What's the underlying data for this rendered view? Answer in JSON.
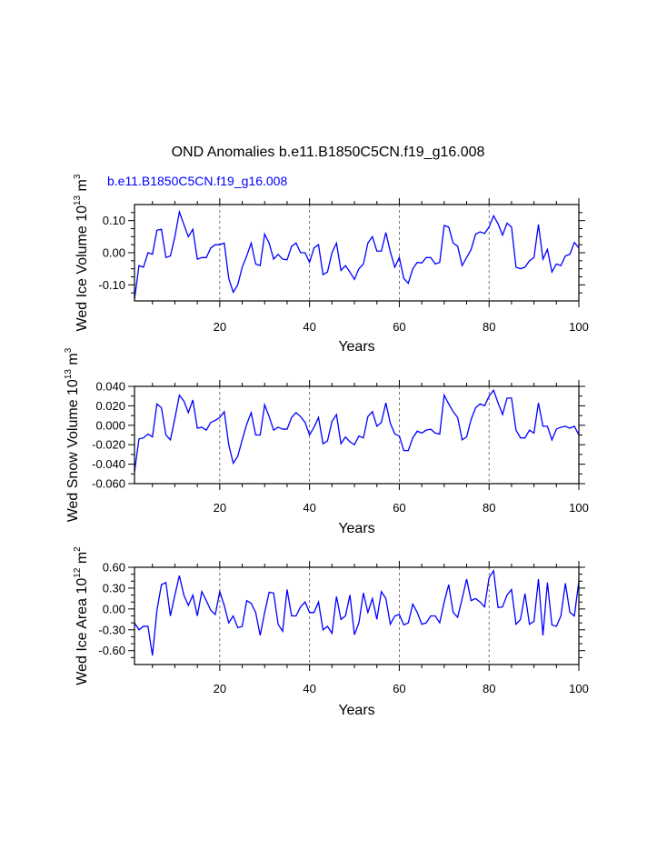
{
  "title": "OND Anomalies b.e11.B1850C5CN.f19_g16.008",
  "subtitle": "b.e11.B1850C5CN.f19_g16.008",
  "colors": {
    "series": "#0000ff",
    "axis": "#000000",
    "grid": "#555555",
    "subtitle": "#0000ff"
  },
  "chart_data": [
    {
      "type": "line",
      "xlabel": "Years",
      "ylabel": {
        "base": "Wed Ice Volume 10",
        "exp1": "13",
        "mid": " m",
        "exp2": "3"
      },
      "xlim": [
        1,
        100
      ],
      "ylim": [
        -0.15,
        0.15
      ],
      "xticks": [
        20,
        40,
        60,
        80,
        100
      ],
      "yticks": [
        -0.1,
        0.0,
        0.1
      ],
      "ytick_labels": [
        "-0.10",
        "0.00",
        "0.10"
      ],
      "yminor": [
        -0.125,
        -0.075,
        -0.05,
        -0.025,
        0.025,
        0.05,
        0.075,
        0.125
      ],
      "vlines": [
        20,
        40,
        60,
        80
      ],
      "series": [
        {
          "name": "Wed Ice Volume",
          "x_start": 1,
          "values": [
            -0.145,
            -0.04,
            -0.045,
            0.0,
            -0.005,
            0.07,
            0.073,
            -0.015,
            -0.01,
            0.05,
            0.127,
            0.088,
            0.05,
            0.073,
            -0.02,
            -0.015,
            -0.015,
            0.015,
            0.025,
            0.025,
            0.03,
            -0.08,
            -0.123,
            -0.1,
            -0.045,
            -0.01,
            0.03,
            -0.035,
            -0.04,
            0.058,
            0.03,
            -0.02,
            -0.005,
            -0.02,
            -0.022,
            0.02,
            0.03,
            0.0,
            0.0,
            -0.03,
            0.015,
            0.025,
            -0.068,
            -0.06,
            0.0,
            0.03,
            -0.055,
            -0.04,
            -0.06,
            -0.083,
            -0.05,
            -0.035,
            0.03,
            0.05,
            0.005,
            0.005,
            0.063,
            0.003,
            -0.045,
            -0.015,
            -0.08,
            -0.095,
            -0.05,
            -0.03,
            -0.032,
            -0.015,
            -0.015,
            -0.035,
            -0.03,
            0.085,
            0.08,
            0.03,
            0.02,
            -0.04,
            -0.015,
            0.01,
            0.058,
            0.065,
            0.06,
            0.08,
            0.115,
            0.09,
            0.055,
            0.092,
            0.08,
            -0.045,
            -0.05,
            -0.045,
            -0.025,
            -0.015,
            0.088,
            -0.02,
            0.01,
            -0.06,
            -0.035,
            -0.04,
            -0.01,
            -0.005,
            0.032,
            0.015
          ]
        }
      ]
    },
    {
      "type": "line",
      "xlabel": "Years",
      "ylabel": {
        "base": "Wed Snow Volume 10",
        "exp1": "13",
        "mid": " m",
        "exp2": "3"
      },
      "xlim": [
        1,
        100
      ],
      "ylim": [
        -0.06,
        0.04
      ],
      "xticks": [
        20,
        40,
        60,
        80,
        100
      ],
      "yticks": [
        -0.06,
        -0.04,
        -0.02,
        0.0,
        0.02,
        0.04
      ],
      "ytick_labels": [
        "-0.060",
        "-0.040",
        "-0.020",
        "0.000",
        "0.020",
        "0.040"
      ],
      "yminor": [
        -0.05,
        -0.03,
        -0.01,
        0.01,
        0.03
      ],
      "vlines": [
        20,
        40,
        60,
        80
      ],
      "series": [
        {
          "name": "Wed Snow Volume",
          "x_start": 1,
          "values": [
            -0.048,
            -0.014,
            -0.013,
            -0.009,
            -0.012,
            0.022,
            0.018,
            -0.01,
            -0.015,
            0.007,
            0.031,
            0.025,
            0.013,
            0.026,
            -0.003,
            -0.002,
            -0.005,
            0.003,
            0.005,
            0.008,
            0.014,
            -0.02,
            -0.039,
            -0.032,
            -0.015,
            0.001,
            0.013,
            -0.01,
            -0.01,
            0.021,
            0.009,
            -0.005,
            -0.002,
            -0.004,
            -0.004,
            0.008,
            0.013,
            0.009,
            0.003,
            -0.01,
            -0.002,
            0.008,
            -0.019,
            -0.016,
            0.004,
            0.011,
            -0.019,
            -0.012,
            -0.017,
            -0.02,
            -0.011,
            -0.013,
            0.009,
            0.014,
            -0.001,
            0.003,
            0.023,
            0.002,
            -0.009,
            -0.011,
            -0.026,
            -0.026,
            -0.013,
            -0.006,
            -0.008,
            -0.005,
            -0.004,
            -0.008,
            -0.009,
            0.031,
            0.022,
            0.014,
            0.008,
            -0.015,
            -0.012,
            0.006,
            0.018,
            0.022,
            0.02,
            0.03,
            0.036,
            0.023,
            0.011,
            0.028,
            0.028,
            -0.005,
            -0.013,
            -0.013,
            -0.005,
            -0.008,
            0.023,
            -0.001,
            -0.001,
            -0.015,
            -0.004,
            -0.002,
            -0.001,
            -0.003,
            -0.001,
            -0.01
          ]
        }
      ]
    },
    {
      "type": "line",
      "xlabel": "Years",
      "ylabel": {
        "base": "Wed Ice Area 10",
        "exp1": "12",
        "mid": " m",
        "exp2": "2"
      },
      "xlim": [
        1,
        100
      ],
      "ylim": [
        -0.8,
        0.6
      ],
      "xticks": [
        20,
        40,
        60,
        80,
        100
      ],
      "yticks": [
        -0.6,
        -0.3,
        0.0,
        0.3,
        0.6
      ],
      "ytick_labels": [
        "-0.60",
        "-0.30",
        "0.00",
        "0.30",
        "0.60"
      ],
      "yminor": [
        -0.7,
        -0.5,
        -0.4,
        -0.2,
        -0.1,
        0.1,
        0.2,
        0.4,
        0.5
      ],
      "vlines": [
        20,
        40,
        60,
        80
      ],
      "series": [
        {
          "name": "Wed Ice Area",
          "x_start": 1,
          "values": [
            -0.2,
            -0.3,
            -0.25,
            -0.25,
            -0.67,
            -0.02,
            0.35,
            0.38,
            -0.1,
            0.2,
            0.48,
            0.2,
            0.05,
            0.2,
            -0.1,
            0.25,
            0.12,
            -0.02,
            -0.08,
            0.25,
            0.05,
            -0.2,
            -0.1,
            -0.27,
            -0.25,
            0.12,
            0.08,
            -0.05,
            -0.38,
            -0.05,
            0.24,
            0.23,
            -0.22,
            -0.32,
            0.28,
            -0.1,
            -0.1,
            0.03,
            0.1,
            -0.05,
            -0.05,
            0.1,
            -0.3,
            -0.25,
            -0.35,
            0.18,
            -0.15,
            -0.1,
            0.2,
            -0.37,
            -0.2,
            0.23,
            -0.05,
            0.15,
            -0.15,
            0.25,
            0.15,
            -0.22,
            -0.1,
            -0.08,
            -0.23,
            -0.2,
            0.07,
            -0.05,
            -0.22,
            -0.2,
            -0.1,
            -0.1,
            -0.2,
            0.1,
            0.35,
            -0.05,
            -0.12,
            0.15,
            0.43,
            0.12,
            0.15,
            0.1,
            0.03,
            0.45,
            0.55,
            0.02,
            0.03,
            0.2,
            0.28,
            -0.22,
            -0.15,
            0.22,
            -0.22,
            -0.18,
            0.43,
            -0.38,
            0.38,
            -0.23,
            -0.25,
            -0.1,
            0.37,
            -0.05,
            -0.1,
            0.4
          ]
        }
      ]
    }
  ]
}
